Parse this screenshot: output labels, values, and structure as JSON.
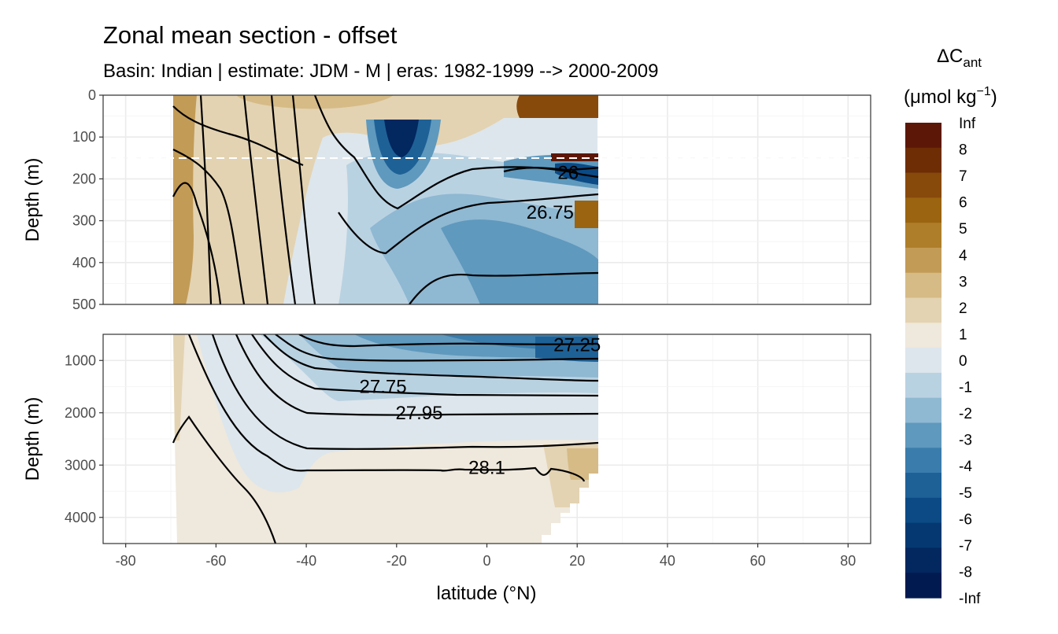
{
  "chart_data": {
    "type": "contour-section",
    "title": "Zonal mean section - offset",
    "subtitle": "Basin: Indian | estimate: JDM - M | eras: 1982-1999 --> 2000-2009",
    "xlabel": "latitude (°N)",
    "ylabel": "Depth (m)",
    "xlim": [
      -85,
      85
    ],
    "x_ticks": [
      -80,
      -60,
      -40,
      -20,
      0,
      20,
      40,
      60,
      80
    ],
    "data_lat_range": [
      -70,
      24.5
    ],
    "panels": [
      {
        "name": "upper",
        "ylim": [
          0,
          500
        ],
        "y_ticks": [
          0,
          100,
          200,
          300,
          400,
          500
        ]
      },
      {
        "name": "lower",
        "ylim": [
          500,
          4500
        ],
        "y_ticks": [
          1000,
          2000,
          3000,
          4000
        ]
      }
    ],
    "reference_depth_line": 150,
    "legend": {
      "title_main": "ΔC",
      "title_sub": "ant",
      "unit_prefix": "(μmol kg",
      "unit_sup": "−1",
      "unit_suffix": ")",
      "labels": [
        "Inf",
        "8",
        "7",
        "6",
        "5",
        "4",
        "3",
        "2",
        "1",
        "0",
        "-1",
        "-2",
        "-3",
        "-4",
        "-5",
        "-6",
        "-7",
        "-8",
        "-Inf"
      ],
      "colors": [
        "#5c1707",
        "#6e2d05",
        "#884a0b",
        "#9a6410",
        "#ae7e2a",
        "#c29b56",
        "#d6bb87",
        "#e3d3b2",
        "#efe8dc",
        "#dde6ec",
        "#b9d2e2",
        "#8fb8d2",
        "#5f99bd",
        "#3a7cab",
        "#1e6197",
        "#0b4a85",
        "#053870",
        "#03275f",
        "#011a4f"
      ]
    },
    "isopycnals": [
      {
        "label": "26",
        "lat": 18,
        "depth": 185
      },
      {
        "label": "26.75",
        "lat": 14,
        "depth": 280
      },
      {
        "label": "27.25",
        "lat": 20,
        "depth": 700
      },
      {
        "label": "27.75",
        "lat": -23,
        "depth": 1500
      },
      {
        "label": "27.95",
        "lat": -15,
        "depth": 2000
      },
      {
        "label": "28.1",
        "lat": 0,
        "depth": 3050
      }
    ]
  }
}
